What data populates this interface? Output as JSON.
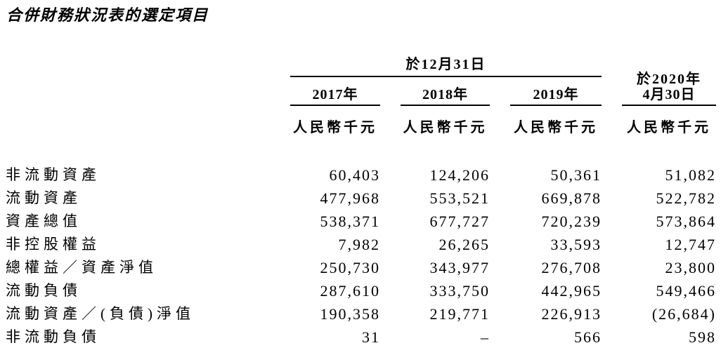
{
  "title": "合併財務狀況表的選定項目",
  "table": {
    "group_header": "於12月31日",
    "col4_header": {
      "line1": "於2020年",
      "line2": "4月30日"
    },
    "year_headers": [
      "2017年",
      "2018年",
      "2019年"
    ],
    "unit_label": "人民幣千元",
    "rows": [
      {
        "label": "非流動資產",
        "values": [
          "60,403",
          "124,206",
          "50,361",
          "51,082"
        ]
      },
      {
        "label": "流動資產",
        "values": [
          "477,968",
          "553,521",
          "669,878",
          "522,782"
        ]
      },
      {
        "label": "資產總值",
        "values": [
          "538,371",
          "677,727",
          "720,239",
          "573,864"
        ]
      },
      {
        "label": "非控股權益",
        "values": [
          "7,982",
          "26,265",
          "33,593",
          "12,747"
        ]
      },
      {
        "label": "總權益／資產淨值",
        "values": [
          "250,730",
          "343,977",
          "276,708",
          "23,800"
        ]
      },
      {
        "label": "流動負債",
        "values": [
          "287,610",
          "333,750",
          "442,965",
          "549,466"
        ]
      },
      {
        "label": "流動資產／(負債)淨值",
        "values": [
          "190,358",
          "219,771",
          "226,913",
          "(26,684)"
        ]
      },
      {
        "label": "非流動負債",
        "values": [
          "31",
          "–",
          "566",
          "598"
        ]
      }
    ]
  }
}
